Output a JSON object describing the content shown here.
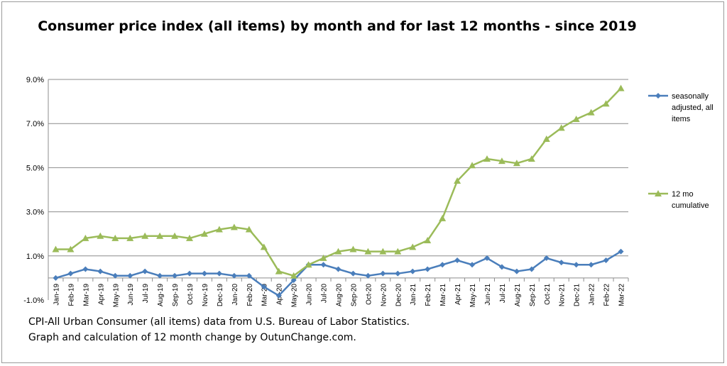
{
  "chart_data": {
    "type": "line",
    "title": "Consumer price index (all items) by month and for last 12 months - since 2019",
    "ylim": [
      -1.0,
      9.0
    ],
    "yticks": [
      "-1.0%",
      "1.0%",
      "3.0%",
      "5.0%",
      "7.0%",
      "9.0%"
    ],
    "grid": true,
    "legend_position": "right",
    "categories": [
      "Jan-19",
      "Feb-19",
      "Mar-19",
      "Apr-19",
      "May-19",
      "Jun-19",
      "Jul-19",
      "Aug-19",
      "Sep-19",
      "Oct-19",
      "Nov-19",
      "Dec-19",
      "Jan-20",
      "Feb-20",
      "Mar-20",
      "Apr-20",
      "May-20",
      "Jun-20",
      "Jul-20",
      "Aug-20",
      "Sep-20",
      "Oct-20",
      "Nov-20",
      "Dec-20",
      "Jan-21",
      "Feb-21",
      "Mar-21",
      "Apr-21",
      "May-21",
      "Jun-21",
      "Jul-21",
      "Aug-21",
      "Sep-21",
      "Oct-21",
      "Nov-21",
      "Dec-21",
      "Jan-22",
      "Feb-22",
      "Mar-22"
    ],
    "series": [
      {
        "name": "seasonally adjusted, all items",
        "color": "#4a7ebb",
        "marker": "diamond",
        "values": [
          0.0,
          0.2,
          0.4,
          0.3,
          0.1,
          0.1,
          0.3,
          0.1,
          0.1,
          0.2,
          0.2,
          0.2,
          0.1,
          0.1,
          -0.4,
          -0.8,
          -0.1,
          0.6,
          0.6,
          0.4,
          0.2,
          0.1,
          0.2,
          0.2,
          0.3,
          0.4,
          0.6,
          0.8,
          0.6,
          0.9,
          0.5,
          0.3,
          0.4,
          0.9,
          0.7,
          0.6,
          0.6,
          0.8,
          1.2
        ]
      },
      {
        "name": "12 mo cumulative",
        "color": "#9bbb59",
        "marker": "triangle",
        "values": [
          1.3,
          1.3,
          1.8,
          1.9,
          1.8,
          1.8,
          1.9,
          1.9,
          1.9,
          1.8,
          2.0,
          2.2,
          2.3,
          2.2,
          1.4,
          0.3,
          0.1,
          0.6,
          0.9,
          1.2,
          1.3,
          1.2,
          1.2,
          1.2,
          1.4,
          1.7,
          2.7,
          4.4,
          5.1,
          5.4,
          5.3,
          5.2,
          5.4,
          6.3,
          6.8,
          7.2,
          7.5,
          7.9,
          8.6
        ]
      }
    ]
  },
  "notes": {
    "line1": "CPI-All Urban Consumer (all items) data from U.S. Bureau  of Labor Statistics.",
    "line2": "Graph and calculation of 12 month change by OutunChange.com."
  }
}
